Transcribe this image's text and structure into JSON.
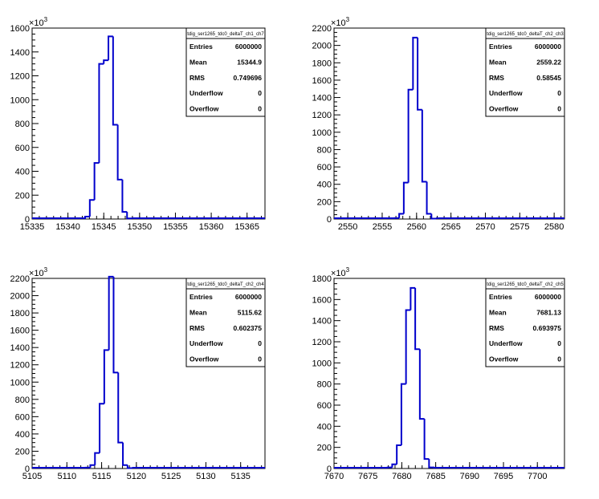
{
  "chart_data": [
    {
      "type": "histogram",
      "name": "tdig_ser1265_tdc0_deltaT_ch1_ch7",
      "ylabel_multiplier": "×10",
      "ylabel_exponent": "3",
      "xlim": [
        15335,
        15367.5
      ],
      "ylim": [
        0,
        1600
      ],
      "xticks": [
        15335,
        15340,
        15345,
        15350,
        15355,
        15360,
        15365
      ],
      "yticks": [
        0,
        200,
        400,
        600,
        800,
        1000,
        1200,
        1400,
        1600
      ],
      "bin_width": 0.65,
      "bins": [
        {
          "x": 15342.4,
          "y": 20
        },
        {
          "x": 15343.05,
          "y": 160
        },
        {
          "x": 15343.7,
          "y": 470
        },
        {
          "x": 15344.35,
          "y": 1300
        },
        {
          "x": 15345.0,
          "y": 1330
        },
        {
          "x": 15345.65,
          "y": 1530
        },
        {
          "x": 15346.3,
          "y": 790
        },
        {
          "x": 15346.95,
          "y": 330
        },
        {
          "x": 15347.6,
          "y": 60
        },
        {
          "x": 15348.25,
          "y": 5
        }
      ],
      "stats": {
        "title": "tdig_ser1265_tdc0_deltaT_ch1_ch7",
        "rows": [
          {
            "label": "Entries",
            "value": "6000000"
          },
          {
            "label": "Mean",
            "value": "15344.9"
          },
          {
            "label": "RMS",
            "value": "0.749696"
          },
          {
            "label": "Underflow",
            "value": "0"
          },
          {
            "label": "Overflow",
            "value": "0"
          }
        ]
      }
    },
    {
      "type": "histogram",
      "name": "tdig_ser1265_tdc0_deltaT_ch2_ch3",
      "ylabel_multiplier": "×10",
      "ylabel_exponent": "3",
      "xlim": [
        2548,
        2581.5
      ],
      "ylim": [
        0,
        2200
      ],
      "xticks": [
        2550,
        2555,
        2560,
        2565,
        2570,
        2575,
        2580
      ],
      "yticks": [
        0,
        200,
        400,
        600,
        800,
        1000,
        1200,
        1400,
        1600,
        1800,
        2000,
        2200
      ],
      "bin_width": 0.67,
      "bins": [
        {
          "x": 2556.8,
          "y": 10
        },
        {
          "x": 2557.47,
          "y": 60
        },
        {
          "x": 2558.14,
          "y": 420
        },
        {
          "x": 2558.81,
          "y": 1490
        },
        {
          "x": 2559.48,
          "y": 2090
        },
        {
          "x": 2560.15,
          "y": 1260
        },
        {
          "x": 2560.82,
          "y": 430
        },
        {
          "x": 2561.49,
          "y": 60
        },
        {
          "x": 2562.16,
          "y": 5
        }
      ],
      "stats": {
        "title": "tdig_ser1265_tdc0_deltaT_ch2_ch3",
        "rows": [
          {
            "label": "Entries",
            "value": "6000000"
          },
          {
            "label": "Mean",
            "value": "2559.22"
          },
          {
            "label": "RMS",
            "value": "0.58545"
          },
          {
            "label": "Underflow",
            "value": "0"
          },
          {
            "label": "Overflow",
            "value": "0"
          }
        ]
      }
    },
    {
      "type": "histogram",
      "name": "tdig_ser1265_tdc0_deltaT_ch2_ch4",
      "ylabel_multiplier": "×10",
      "ylabel_exponent": "3",
      "xlim": [
        5105,
        5138.5
      ],
      "ylim": [
        0,
        2200
      ],
      "xticks": [
        5105,
        5110,
        5115,
        5120,
        5125,
        5130,
        5135
      ],
      "yticks": [
        0,
        200,
        400,
        600,
        800,
        1000,
        1200,
        1400,
        1600,
        1800,
        2000,
        2200
      ],
      "bin_width": 0.67,
      "bins": [
        {
          "x": 5112.7,
          "y": 10
        },
        {
          "x": 5113.37,
          "y": 40
        },
        {
          "x": 5114.04,
          "y": 180
        },
        {
          "x": 5114.71,
          "y": 750
        },
        {
          "x": 5115.38,
          "y": 1370
        },
        {
          "x": 5116.05,
          "y": 2220
        },
        {
          "x": 5116.72,
          "y": 1110
        },
        {
          "x": 5117.39,
          "y": 300
        },
        {
          "x": 5118.06,
          "y": 40
        },
        {
          "x": 5118.73,
          "y": 5
        }
      ],
      "stats": {
        "title": "tdig_ser1265_tdc0_deltaT_ch2_ch4",
        "rows": [
          {
            "label": "Entries",
            "value": "6000000"
          },
          {
            "label": "Mean",
            "value": "5115.62"
          },
          {
            "label": "RMS",
            "value": "0.602375"
          },
          {
            "label": "Underflow",
            "value": "0"
          },
          {
            "label": "Overflow",
            "value": "0"
          }
        ]
      }
    },
    {
      "type": "histogram",
      "name": "tdig_ser1265_tdc0_deltaT_ch2_ch5",
      "ylabel_multiplier": "×10",
      "ylabel_exponent": "3",
      "xlim": [
        7670,
        7704
      ],
      "ylim": [
        0,
        1800
      ],
      "xticks": [
        7670,
        7675,
        7680,
        7685,
        7690,
        7695,
        7700
      ],
      "yticks": [
        0,
        200,
        400,
        600,
        800,
        1000,
        1200,
        1400,
        1600,
        1800
      ],
      "bin_width": 0.68,
      "bins": [
        {
          "x": 7677.9,
          "y": 10
        },
        {
          "x": 7678.58,
          "y": 40
        },
        {
          "x": 7679.26,
          "y": 220
        },
        {
          "x": 7679.94,
          "y": 800
        },
        {
          "x": 7680.62,
          "y": 1500
        },
        {
          "x": 7681.3,
          "y": 1710
        },
        {
          "x": 7681.98,
          "y": 1130
        },
        {
          "x": 7682.66,
          "y": 470
        },
        {
          "x": 7683.34,
          "y": 90
        },
        {
          "x": 7684.02,
          "y": 10
        }
      ],
      "stats": {
        "title": "tdig_ser1265_tdc0_deltaT_ch2_ch5",
        "rows": [
          {
            "label": "Entries",
            "value": "6000000"
          },
          {
            "label": "Mean",
            "value": "7681.13"
          },
          {
            "label": "RMS",
            "value": "0.693975"
          },
          {
            "label": "Underflow",
            "value": "0"
          },
          {
            "label": "Overflow",
            "value": "0"
          }
        ]
      }
    }
  ],
  "style": {
    "line_color": "#0000cc",
    "frame_color": "#000000",
    "background": "#ffffff"
  }
}
